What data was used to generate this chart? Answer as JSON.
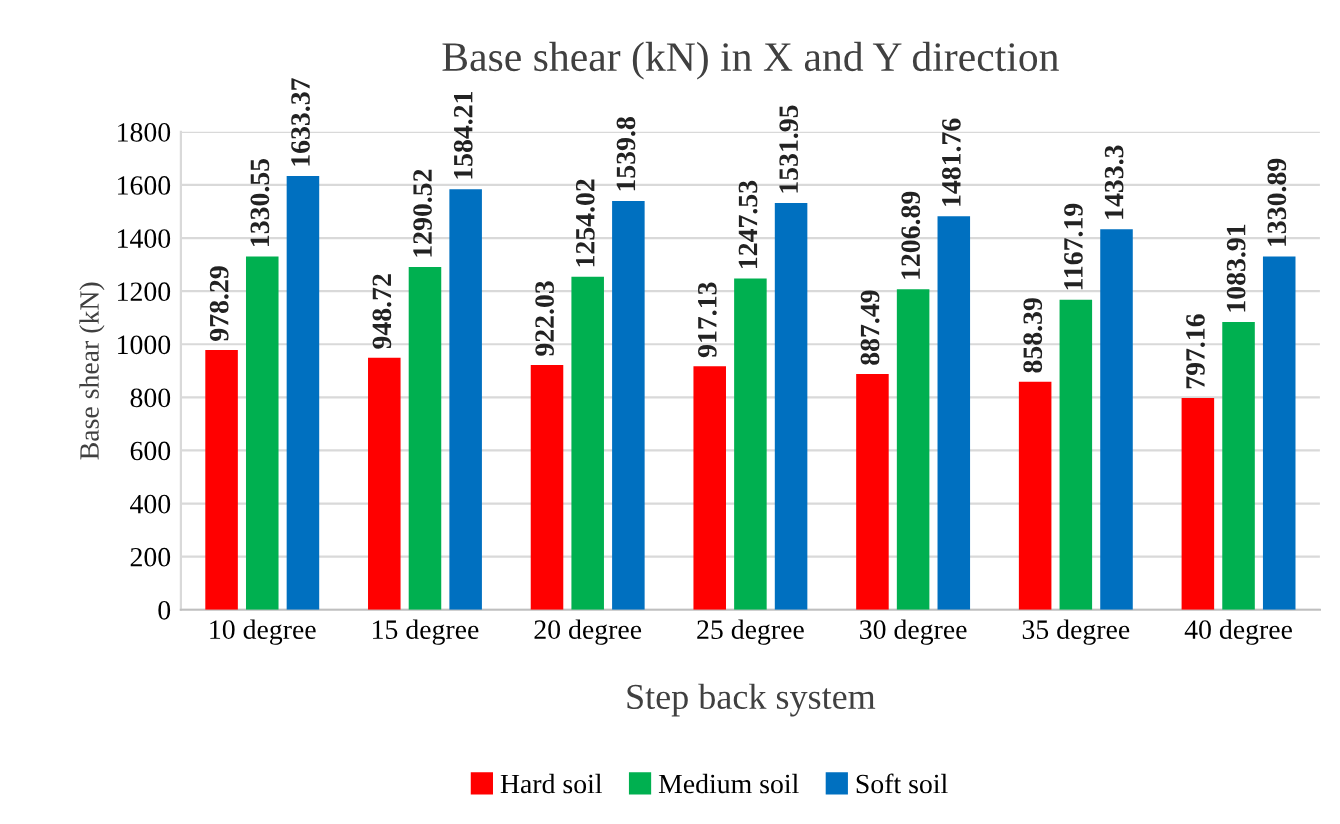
{
  "chart_data": {
    "type": "bar",
    "title": "Base shear (kN) in X and Y direction",
    "xlabel": "Step back system",
    "ylabel": "Base shear (kN)",
    "categories": [
      "10 degree",
      "15 degree",
      "20 degree",
      "25 degree",
      "30 degree",
      "35 degree",
      "40 degree"
    ],
    "series": [
      {
        "name": "Hard soil",
        "color": "#ff0000",
        "values": [
          978.29,
          948.72,
          922.03,
          917.13,
          887.49,
          858.39,
          797.16
        ]
      },
      {
        "name": "Medium soil",
        "color": "#00b050",
        "values": [
          1330.55,
          1290.52,
          1254.02,
          1247.53,
          1206.89,
          1167.19,
          1083.91
        ]
      },
      {
        "name": "Soft soil",
        "color": "#0070c0",
        "values": [
          1633.37,
          1584.21,
          1539.8,
          1531.95,
          1481.76,
          1433.3,
          1330.89
        ]
      }
    ],
    "ylim": [
      0,
      1800
    ],
    "yticks": [
      0,
      200,
      400,
      600,
      800,
      1000,
      1200,
      1400,
      1600,
      1800
    ],
    "grid": "y",
    "legend": "bottom",
    "data_labels": true
  }
}
